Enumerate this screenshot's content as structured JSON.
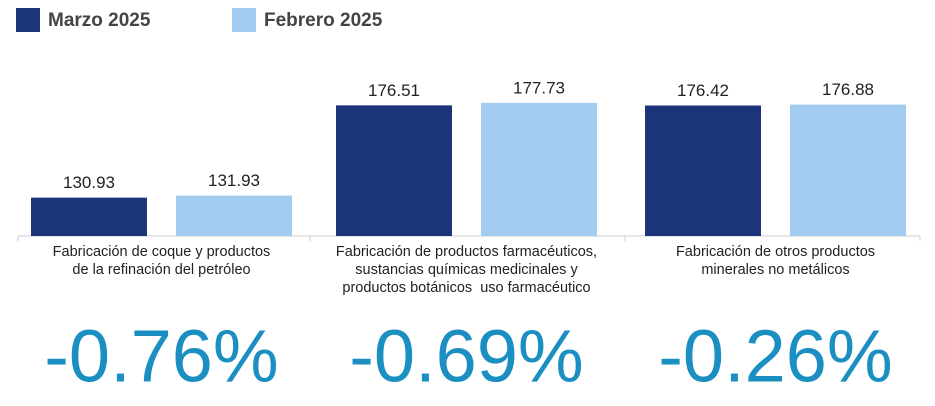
{
  "chart_data": {
    "type": "bar",
    "categories": [
      "Fabricación de coque y productos\nde la refinación del petróleo",
      "Fabricación de productos farmacéuticos,\nsustancias químicas medicinales y\nproductos botánicos  uso farmacéutico",
      "Fabricación de otros productos\nminerales no metálicos"
    ],
    "series": [
      {
        "name": "Marzo 2025",
        "color": "#1c347a",
        "values": [
          130.93,
          176.51,
          176.42
        ]
      },
      {
        "name": "Febrero 2025",
        "color": "#a3cdf0",
        "values": [
          131.93,
          177.73,
          176.88
        ]
      }
    ],
    "ylim": [
      112,
      190
    ],
    "annotations": [
      "-0.76%",
      "-0.69%",
      "-0.26%"
    ]
  }
}
